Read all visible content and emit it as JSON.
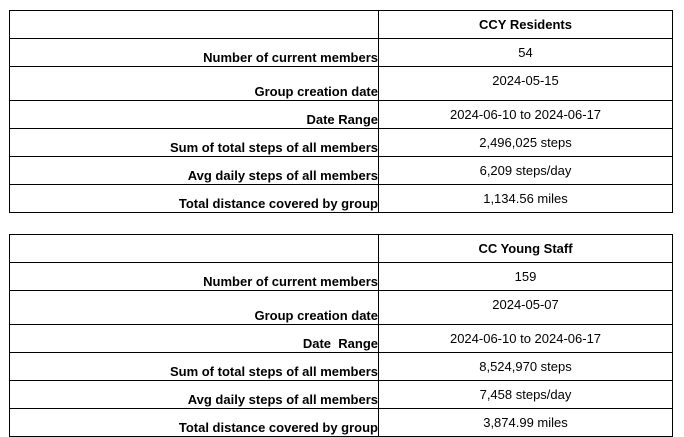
{
  "tables": [
    {
      "title": "CCY Residents",
      "rows": [
        {
          "label": "Number of current members",
          "value": "54"
        },
        {
          "label": "Group creation date",
          "value": "2024-05-15"
        },
        {
          "label": "Date Range",
          "value": "2024-06-10 to 2024-06-17"
        },
        {
          "label": "Sum of total steps of all members",
          "value": "2,496,025 steps"
        },
        {
          "label": "Avg daily steps of all members",
          "value": "6,209 steps/day"
        },
        {
          "label": "Total distance covered by group",
          "value": "1,134.56 miles"
        }
      ]
    },
    {
      "title": "CC Young Staff",
      "rows": [
        {
          "label": "Number of current members",
          "value": "159"
        },
        {
          "label": "Group creation date",
          "value": "2024-05-07"
        },
        {
          "label": "Date  Range",
          "value": "2024-06-10 to 2024-06-17"
        },
        {
          "label": "Sum of total steps of all members",
          "value": "8,524,970 steps"
        },
        {
          "label": "Avg daily steps of all members",
          "value": "7,458 steps/day"
        },
        {
          "label": "Total distance covered by group",
          "value": "3,874.99 miles"
        }
      ]
    }
  ]
}
